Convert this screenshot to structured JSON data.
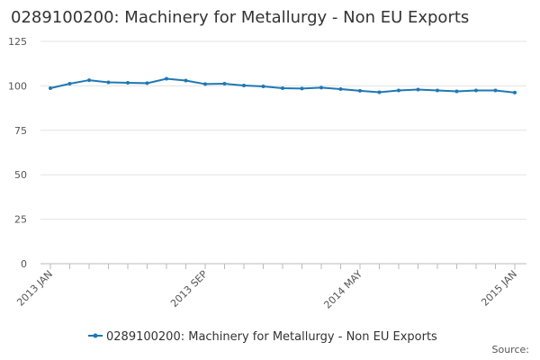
{
  "chart_data": {
    "type": "line",
    "title": "0289100200: Machinery for Metallurgy - Non EU Exports",
    "categories": [
      "2013 JAN",
      null,
      null,
      null,
      null,
      null,
      null,
      null,
      "2013 SEP",
      null,
      null,
      null,
      null,
      null,
      null,
      null,
      "2014 MAY",
      null,
      null,
      null,
      null,
      null,
      null,
      null,
      "2015 JAN"
    ],
    "series": [
      {
        "name": "0289100200: Machinery for Metallurgy - Non EU Exports",
        "color": "#1f78b4",
        "values": [
          98.7,
          101.2,
          103.2,
          102,
          101.7,
          101.5,
          104,
          103,
          101,
          101.2,
          100.2,
          99.7,
          98.7,
          98.5,
          99,
          98.2,
          97.2,
          96.4,
          97.4,
          97.9,
          97.4,
          96.9,
          97.4,
          97.4,
          96.2
        ]
      }
    ],
    "ylim": [
      0,
      125
    ],
    "yticks": [
      0,
      25,
      50,
      75,
      100,
      125
    ],
    "grid": true,
    "legend": "bottom",
    "source": "Source:"
  }
}
